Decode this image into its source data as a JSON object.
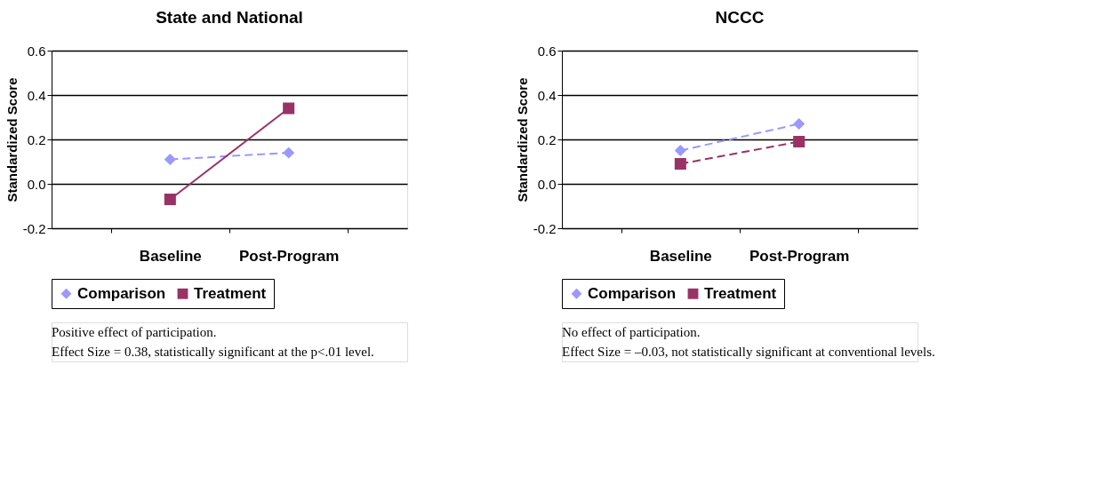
{
  "chart_data": [
    {
      "type": "line",
      "title": "State and National",
      "ylabel": "Standardized Score",
      "categories": [
        "Baseline",
        "Post-Program"
      ],
      "ylim": [
        -0.2,
        0.6
      ],
      "yticks": [
        {
          "value": -0.2,
          "label": "-0.2"
        },
        {
          "value": 0,
          "label": "0.0"
        },
        {
          "value": 0.2,
          "label": "0.2"
        },
        {
          "value": 0.4,
          "label": "0.4"
        },
        {
          "value": 0.6,
          "label": "0.6"
        }
      ],
      "grid": "y",
      "legend": "bottom",
      "series": [
        {
          "name": "Comparison",
          "color": "#9999ff",
          "values": [
            0.11,
            0.14
          ],
          "marker": "diamond",
          "line_style": "dashed"
        },
        {
          "name": "Treatment",
          "color": "#993366",
          "values": [
            -0.07,
            0.34
          ],
          "marker": "square",
          "line_style": "solid"
        }
      ],
      "annotations": [
        "Positive effect of participation.",
        "Effect Size = 0.38, statistically significant at the p<.01 level."
      ]
    },
    {
      "type": "line",
      "title": "NCCC",
      "ylabel": "Standardized Score",
      "categories": [
        "Baseline",
        "Post-Program"
      ],
      "ylim": [
        -0.2,
        0.6
      ],
      "yticks": [
        {
          "value": -0.2,
          "label": "-0.2"
        },
        {
          "value": 0,
          "label": "0.0"
        },
        {
          "value": 0.2,
          "label": "0.2"
        },
        {
          "value": 0.4,
          "label": "0.4"
        },
        {
          "value": 0.6,
          "label": "0.6"
        }
      ],
      "grid": "y",
      "legend": "bottom",
      "series": [
        {
          "name": "Comparison",
          "color": "#9999ff",
          "values": [
            0.15,
            0.27
          ],
          "marker": "diamond",
          "line_style": "dashed"
        },
        {
          "name": "Treatment",
          "color": "#993366",
          "values": [
            0.09,
            0.19
          ],
          "marker": "square",
          "line_style": "dashed"
        }
      ],
      "annotations": [
        "No effect of participation.",
        "Effect Size = –0.03, not statistically significant at conventional levels."
      ]
    }
  ]
}
